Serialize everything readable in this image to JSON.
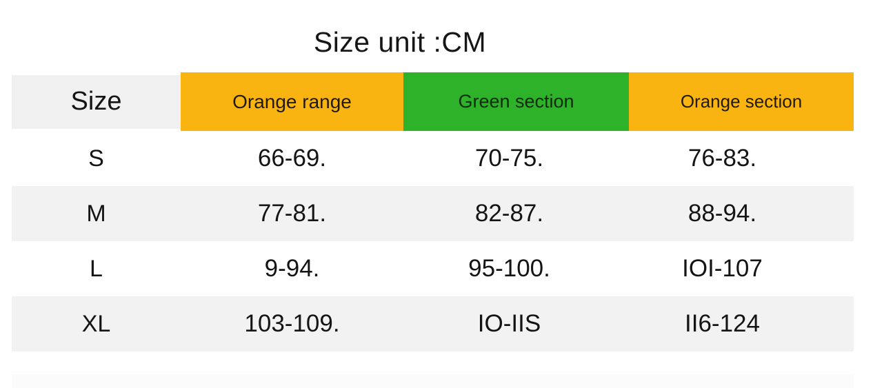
{
  "title": "Size unit :CM",
  "colors": {
    "orange": "#f9b411",
    "green": "#2db22a",
    "header-gray": "#f0f0f0",
    "stripe-gray": "#f2f2f2"
  },
  "chart_data": {
    "type": "table",
    "title": "Size unit :CM",
    "columns": [
      "Size",
      "Orange range",
      "Green section",
      "Orange section"
    ],
    "rows": [
      {
        "size": "S",
        "values": [
          "66-69.",
          "70-75.",
          "76-83."
        ]
      },
      {
        "size": "M",
        "values": [
          "77-81.",
          "82-87.",
          "88-94."
        ]
      },
      {
        "size": "L",
        "values": [
          "9-94.",
          "95-100.",
          "IOI-107"
        ]
      },
      {
        "size": "XL",
        "values": [
          "103-109.",
          "IO-IIS",
          "II6-124"
        ]
      }
    ],
    "layout_hints": {
      "header_colors": [
        "#f0f0f0",
        "#f9b411",
        "#2db22a",
        "#f9b411"
      ],
      "striped_rows": [
        "M",
        "XL"
      ],
      "grid": false
    }
  }
}
